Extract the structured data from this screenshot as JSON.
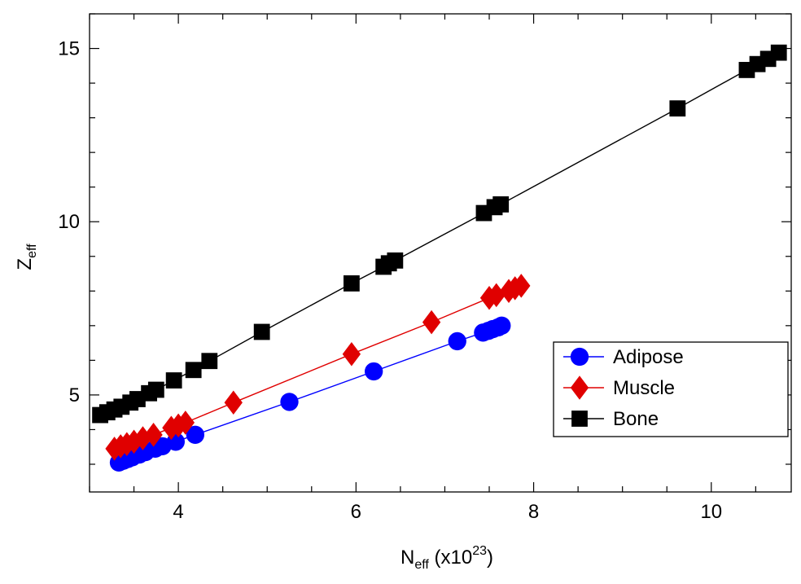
{
  "chart_data": {
    "type": "line",
    "xlabel": {
      "base": "N",
      "sub": "eff",
      "mid": " (x10",
      "sup": "23",
      "end": ")"
    },
    "ylabel": {
      "base": "Z",
      "sub": "eff"
    },
    "xlim": [
      3.0,
      10.9
    ],
    "ylim": [
      2.2,
      16.0
    ],
    "x_ticks": [
      4,
      6,
      8,
      10
    ],
    "y_ticks": [
      5,
      10,
      15
    ],
    "legend_position": "right-center",
    "grid": false,
    "series": [
      {
        "name": "Adipose",
        "color": "#0000ff",
        "marker": "circle",
        "points": [
          [
            3.33,
            3.05
          ],
          [
            3.38,
            3.1
          ],
          [
            3.43,
            3.15
          ],
          [
            3.48,
            3.2
          ],
          [
            3.56,
            3.28
          ],
          [
            3.63,
            3.35
          ],
          [
            3.74,
            3.45
          ],
          [
            3.82,
            3.52
          ],
          [
            3.97,
            3.65
          ],
          [
            4.19,
            3.85
          ],
          [
            5.25,
            4.8
          ],
          [
            6.2,
            5.68
          ],
          [
            7.14,
            6.55
          ],
          [
            7.43,
            6.8
          ],
          [
            7.49,
            6.85
          ],
          [
            7.54,
            6.9
          ],
          [
            7.6,
            6.95
          ],
          [
            7.64,
            7.0
          ]
        ]
      },
      {
        "name": "Muscle",
        "color": "#e00000",
        "marker": "diamond",
        "points": [
          [
            3.28,
            3.45
          ],
          [
            3.35,
            3.52
          ],
          [
            3.42,
            3.58
          ],
          [
            3.5,
            3.65
          ],
          [
            3.6,
            3.75
          ],
          [
            3.72,
            3.85
          ],
          [
            3.92,
            4.05
          ],
          [
            4.0,
            4.12
          ],
          [
            4.08,
            4.2
          ],
          [
            4.62,
            4.78
          ],
          [
            5.95,
            6.18
          ],
          [
            6.85,
            7.1
          ],
          [
            7.5,
            7.8
          ],
          [
            7.58,
            7.88
          ],
          [
            7.72,
            8.0
          ],
          [
            7.79,
            8.08
          ],
          [
            7.86,
            8.15
          ]
        ]
      },
      {
        "name": "Bone",
        "color": "#000000",
        "marker": "square",
        "points": [
          [
            3.12,
            4.42
          ],
          [
            3.2,
            4.5
          ],
          [
            3.28,
            4.58
          ],
          [
            3.36,
            4.66
          ],
          [
            3.46,
            4.78
          ],
          [
            3.54,
            4.88
          ],
          [
            3.67,
            5.05
          ],
          [
            3.75,
            5.15
          ],
          [
            3.95,
            5.42
          ],
          [
            4.17,
            5.72
          ],
          [
            4.35,
            5.98
          ],
          [
            4.94,
            6.82
          ],
          [
            5.95,
            8.22
          ],
          [
            6.31,
            8.7
          ],
          [
            6.37,
            8.8
          ],
          [
            6.44,
            8.88
          ],
          [
            7.44,
            10.25
          ],
          [
            7.56,
            10.42
          ],
          [
            7.63,
            10.5
          ],
          [
            9.62,
            13.27
          ],
          [
            10.4,
            14.38
          ],
          [
            10.52,
            14.55
          ],
          [
            10.64,
            14.7
          ],
          [
            10.76,
            14.88
          ]
        ]
      }
    ]
  }
}
